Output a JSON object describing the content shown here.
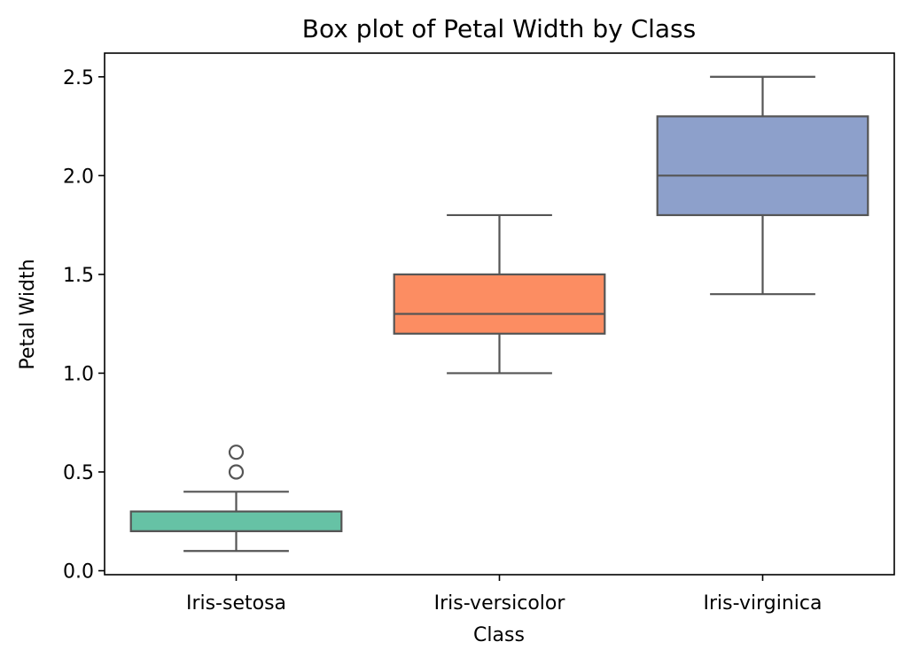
{
  "chart_data": {
    "type": "box",
    "title": "Box plot of Petal Width by Class",
    "xlabel": "Class",
    "ylabel": "Petal Width",
    "ylim": [
      -0.02,
      2.62
    ],
    "yticks": [
      0.0,
      0.5,
      1.0,
      1.5,
      2.0,
      2.5
    ],
    "ytick_labels": [
      "0.0",
      "0.5",
      "1.0",
      "1.5",
      "2.0",
      "2.5"
    ],
    "grid": false,
    "categories": [
      "Iris-setosa",
      "Iris-versicolor",
      "Iris-virginica"
    ],
    "boxes": [
      {
        "category": "Iris-setosa",
        "whisker_low": 0.1,
        "q1": 0.2,
        "median": 0.2,
        "q3": 0.3,
        "whisker_high": 0.4,
        "outliers": [
          0.5,
          0.6
        ],
        "color": "#66c2a5"
      },
      {
        "category": "Iris-versicolor",
        "whisker_low": 1.0,
        "q1": 1.2,
        "median": 1.3,
        "q3": 1.5,
        "whisker_high": 1.8,
        "outliers": [],
        "color": "#fc8d62"
      },
      {
        "category": "Iris-virginica",
        "whisker_low": 1.4,
        "q1": 1.8,
        "median": 2.0,
        "q3": 2.3,
        "whisker_high": 2.5,
        "outliers": [],
        "color": "#8da0cb"
      }
    ]
  }
}
